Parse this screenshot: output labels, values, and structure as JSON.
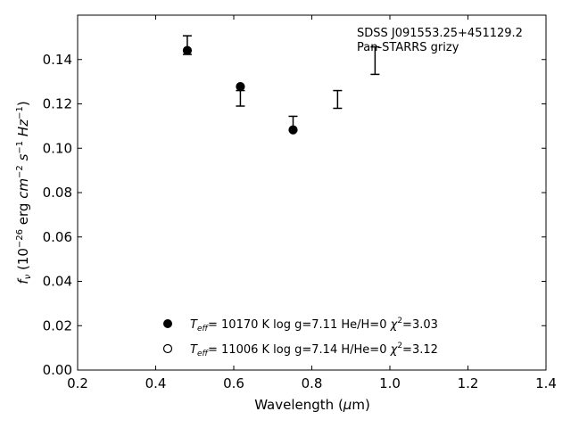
{
  "chart_data": {
    "type": "scatter",
    "title": "",
    "xlabel": "Wavelength (μm)",
    "ylabel": "fν (10⁻²⁶ erg cm⁻² s⁻¹ Hz⁻¹)",
    "xlim": [
      0.2,
      1.4
    ],
    "ylim": [
      0.0,
      0.16
    ],
    "x_ticks": [
      0.2,
      0.4,
      0.6,
      0.8,
      1.0,
      1.2,
      1.4
    ],
    "y_ticks": [
      0.0,
      0.02,
      0.04,
      0.06,
      0.08,
      0.1,
      0.12,
      0.14
    ],
    "grid": false,
    "annotations": [
      "SDSS J091553.25+451129.2",
      "Pan-STARRS grizy"
    ],
    "observed": {
      "x": [
        0.481,
        0.617,
        0.752,
        0.866,
        0.962
      ],
      "y": [
        0.1465,
        0.1225,
        0.1112,
        0.122,
        0.1395
      ],
      "yerr": [
        0.0042,
        0.0035,
        0.0032,
        0.004,
        0.0062
      ]
    },
    "series": [
      {
        "marker": "filled-circle",
        "legend_text": "T_eff= 10170 K  log g=7.11  He/H=0  χ²=3.03",
        "x": [
          0.481,
          0.617,
          0.752
        ],
        "y": [
          0.1441,
          0.1278,
          0.1083
        ]
      },
      {
        "marker": "open-circle",
        "legend_text": "T_eff= 11006 K  log g=7.14  H/He=0  χ²=3.12",
        "x": [],
        "y": []
      }
    ],
    "legend": {
      "placement": "lower-center",
      "entries": [
        {
          "teff_value": "10170 K",
          "logg": "7.11",
          "comp_label": "He/H=0",
          "chi2": "3.03"
        },
        {
          "teff_value": "11006 K",
          "logg": "7.14",
          "comp_label": "H/He=0",
          "chi2": "3.12"
        }
      ]
    }
  }
}
